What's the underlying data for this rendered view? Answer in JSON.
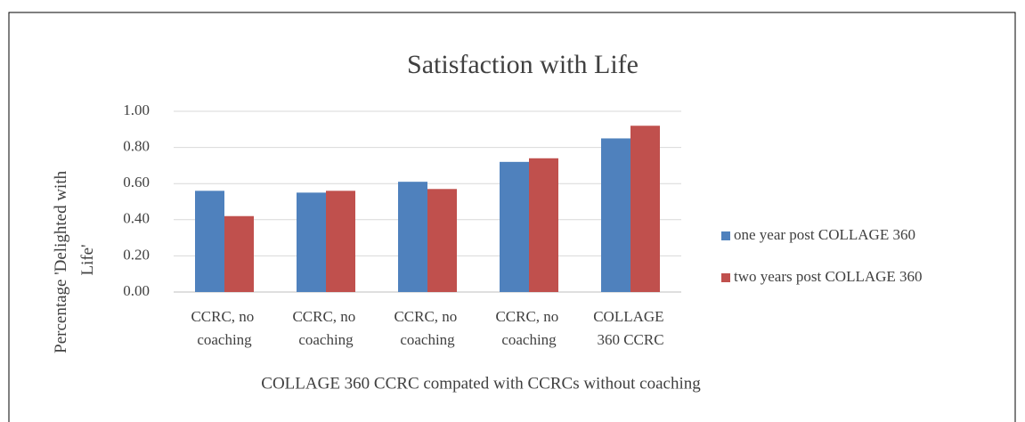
{
  "chart_data": {
    "type": "bar",
    "title": "Satisfaction with Life",
    "x_label": "COLLAGE 360 CCRC compated with CCRCs without coaching",
    "y_label": "Percentage 'Delighted with Life'",
    "categories": [
      "CCRC, no coaching",
      "CCRC, no coaching",
      "CCRC, no coaching",
      "CCRC, no coaching",
      "COLLAGE 360 CCRC"
    ],
    "series": [
      {
        "name": "one year post COLLAGE 360",
        "color": "#4f81bd",
        "values": [
          0.56,
          0.55,
          0.61,
          0.72,
          0.85
        ]
      },
      {
        "name": "two years post COLLAGE 360",
        "color": "#c0504d",
        "values": [
          0.42,
          0.56,
          0.57,
          0.74,
          0.92
        ]
      }
    ],
    "ylim": [
      0,
      1
    ],
    "yticks": [
      {
        "value": 0,
        "label": "0.00"
      },
      {
        "value": 0.2,
        "label": "0.20"
      },
      {
        "value": 0.4,
        "label": "0.40"
      },
      {
        "value": 0.6,
        "label": "0.60"
      },
      {
        "value": 0.8,
        "label": "0.80"
      },
      {
        "value": 1,
        "label": "1.00"
      }
    ],
    "grid": true,
    "legend": "right"
  }
}
